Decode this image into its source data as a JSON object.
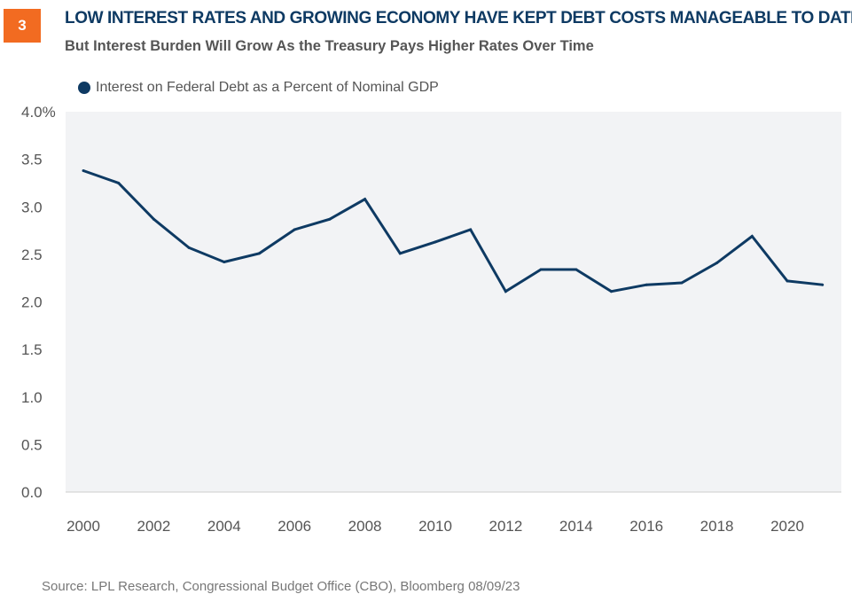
{
  "badge": "3",
  "title": "LOW INTEREST RATES AND GROWING ECONOMY HAVE KEPT DEBT COSTS MANAGEABLE TO DATE",
  "subtitle": "But Interest Burden Will Grow As the Treasury Pays Higher Rates Over Time",
  "source": "Source: LPL Research, Congressional Budget Office (CBO), Bloomberg 08/09/23",
  "colors": {
    "line": "#0e3a63",
    "badge": "#f26b21",
    "plot_bg": "#f2f3f5"
  },
  "chart_data": {
    "type": "line",
    "title": "",
    "xlabel": "",
    "ylabel": "",
    "legend_position": "top-left",
    "grid": false,
    "ylim": [
      0,
      4
    ],
    "xlim": [
      2000,
      2021
    ],
    "y_ticks": [
      "4.0%",
      "3.5",
      "3.0",
      "2.5",
      "2.0",
      "1.5",
      "1.0",
      "0.5",
      "0.0"
    ],
    "x_ticks": [
      "2000",
      "2002",
      "2004",
      "2006",
      "2008",
      "2010",
      "2012",
      "2014",
      "2016",
      "2018",
      "2020"
    ],
    "series": [
      {
        "name": "Interest on Federal Debt as a Percent of Nominal GDP",
        "x": [
          2000,
          2001,
          2002,
          2003,
          2004,
          2005,
          2006,
          2007,
          2008,
          2009,
          2010,
          2011,
          2012,
          2013,
          2014,
          2015,
          2016,
          2017,
          2018,
          2019,
          2020,
          2021
        ],
        "y": [
          3.38,
          3.25,
          2.87,
          2.57,
          2.42,
          2.51,
          2.76,
          2.87,
          3.08,
          2.51,
          2.63,
          2.76,
          2.11,
          2.34,
          2.34,
          2.11,
          2.18,
          2.2,
          2.41,
          2.69,
          2.22,
          2.18
        ]
      }
    ]
  }
}
